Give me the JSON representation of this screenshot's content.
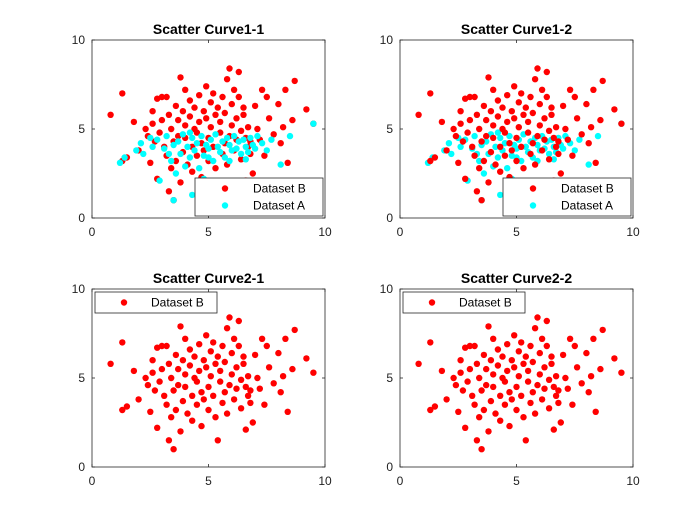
{
  "chart_data": [
    {
      "type": "scatter",
      "title": "Scatter Curve1-1",
      "xlim": [
        0,
        10
      ],
      "ylim": [
        0,
        10
      ],
      "x_ticks": [
        "0",
        "5",
        "10"
      ],
      "y_ticks": [
        "0",
        "5",
        "10"
      ],
      "legend": {
        "location": "bottom-right",
        "entries": [
          "Dataset B",
          "Dataset A"
        ]
      },
      "series": [
        {
          "name": "Dataset B",
          "color": "#ff0000",
          "points_ref": "datasetB"
        },
        {
          "name": "Dataset A",
          "color": "#00ffff",
          "points_ref": "datasetA"
        }
      ]
    },
    {
      "type": "scatter",
      "title": "Scatter Curve1-2",
      "xlim": [
        0,
        10
      ],
      "ylim": [
        0,
        10
      ],
      "x_ticks": [
        "0",
        "5",
        "10"
      ],
      "y_ticks": [
        "0",
        "5",
        "10"
      ],
      "legend": {
        "location": "bottom-right",
        "entries": [
          "Dataset B",
          "Dataset A"
        ]
      },
      "series": [
        {
          "name": "Dataset A",
          "color": "#00ffff",
          "points_ref": "datasetA"
        },
        {
          "name": "Dataset B",
          "color": "#ff0000",
          "points_ref": "datasetB"
        }
      ]
    },
    {
      "type": "scatter",
      "title": "Scatter Curve2-1",
      "xlim": [
        0,
        10
      ],
      "ylim": [
        0,
        10
      ],
      "x_ticks": [
        "0",
        "5",
        "10"
      ],
      "y_ticks": [
        "0",
        "5",
        "10"
      ],
      "legend": {
        "location": "top-left",
        "entries": [
          "Dataset B"
        ]
      },
      "series": [
        {
          "name": "Dataset B",
          "color": "#ff0000",
          "points_ref": "datasetB"
        }
      ]
    },
    {
      "type": "scatter",
      "title": "Scatter Curve2-2",
      "xlim": [
        0,
        10
      ],
      "ylim": [
        0,
        10
      ],
      "x_ticks": [
        "0",
        "5",
        "10"
      ],
      "y_ticks": [
        "0",
        "5",
        "10"
      ],
      "legend": {
        "location": "top-left",
        "entries": [
          "Dataset B"
        ]
      },
      "series": [
        {
          "name": "Dataset B",
          "color": "#ff0000",
          "points_ref": "datasetB"
        }
      ]
    }
  ],
  "datasets": {
    "datasetB": [
      [
        0.8,
        5.8
      ],
      [
        1.3,
        7.0
      ],
      [
        1.3,
        3.2
      ],
      [
        1.5,
        3.4
      ],
      [
        1.8,
        5.4
      ],
      [
        2.0,
        3.8
      ],
      [
        2.3,
        5.0
      ],
      [
        2.4,
        4.6
      ],
      [
        2.5,
        3.1
      ],
      [
        2.6,
        6.0
      ],
      [
        2.6,
        5.3
      ],
      [
        2.7,
        4.3
      ],
      [
        2.8,
        6.7
      ],
      [
        2.8,
        2.2
      ],
      [
        2.9,
        4.8
      ],
      [
        3.0,
        6.8
      ],
      [
        3.0,
        5.5
      ],
      [
        3.1,
        4.0
      ],
      [
        3.2,
        3.5
      ],
      [
        3.2,
        6.8
      ],
      [
        3.3,
        5.8
      ],
      [
        3.3,
        1.5
      ],
      [
        3.4,
        5.0
      ],
      [
        3.4,
        2.8
      ],
      [
        3.5,
        4.3
      ],
      [
        3.5,
        1.0
      ],
      [
        3.6,
        6.3
      ],
      [
        3.6,
        3.2
      ],
      [
        3.7,
        5.5
      ],
      [
        3.7,
        4.6
      ],
      [
        3.8,
        7.9
      ],
      [
        3.8,
        2.0
      ],
      [
        3.9,
        6.0
      ],
      [
        3.9,
        3.7
      ],
      [
        4.0,
        5.2
      ],
      [
        4.0,
        4.5
      ],
      [
        4.0,
        7.2
      ],
      [
        4.1,
        3.0
      ],
      [
        4.2,
        6.6
      ],
      [
        4.2,
        5.7
      ],
      [
        4.3,
        4.0
      ],
      [
        4.3,
        2.6
      ],
      [
        4.4,
        5.0
      ],
      [
        4.4,
        6.2
      ],
      [
        4.5,
        3.5
      ],
      [
        4.5,
        4.8
      ],
      [
        4.6,
        6.9
      ],
      [
        4.6,
        5.4
      ],
      [
        4.7,
        2.3
      ],
      [
        4.7,
        4.2
      ],
      [
        4.8,
        6.0
      ],
      [
        4.8,
        3.8
      ],
      [
        4.9,
        5.6
      ],
      [
        4.9,
        7.4
      ],
      [
        5.0,
        4.5
      ],
      [
        5.0,
        3.2
      ],
      [
        5.1,
        6.5
      ],
      [
        5.1,
        5.1
      ],
      [
        5.2,
        4.0
      ],
      [
        5.2,
        7.0
      ],
      [
        5.3,
        5.8
      ],
      [
        5.3,
        2.8
      ],
      [
        5.4,
        6.2
      ],
      [
        5.4,
        1.5
      ],
      [
        5.5,
        4.8
      ],
      [
        5.5,
        5.4
      ],
      [
        5.6,
        3.6
      ],
      [
        5.6,
        6.8
      ],
      [
        5.7,
        4.2
      ],
      [
        5.7,
        5.9
      ],
      [
        5.8,
        7.8
      ],
      [
        5.8,
        3.0
      ],
      [
        5.9,
        8.4
      ],
      [
        5.9,
        4.6
      ],
      [
        6.0,
        6.4
      ],
      [
        6.0,
        5.2
      ],
      [
        6.1,
        3.8
      ],
      [
        6.1,
        7.2
      ],
      [
        6.2,
        5.6
      ],
      [
        6.2,
        4.4
      ],
      [
        6.3,
        6.8
      ],
      [
        6.3,
        8.2
      ],
      [
        6.4,
        4.9
      ],
      [
        6.4,
        3.3
      ],
      [
        6.5,
        5.8
      ],
      [
        6.5,
        6.2
      ],
      [
        6.6,
        4.5
      ],
      [
        6.6,
        2.1
      ],
      [
        6.7,
        4.0
      ],
      [
        6.7,
        5.1
      ],
      [
        6.8,
        3.6
      ],
      [
        6.8,
        4.3
      ],
      [
        6.9,
        2.5
      ],
      [
        7.0,
        6.3
      ],
      [
        7.1,
        5.0
      ],
      [
        7.2,
        4.4
      ],
      [
        7.3,
        7.2
      ],
      [
        7.4,
        3.5
      ],
      [
        7.5,
        6.8
      ],
      [
        7.6,
        5.6
      ],
      [
        7.8,
        4.7
      ],
      [
        8.0,
        6.4
      ],
      [
        8.1,
        4.2
      ],
      [
        8.2,
        5.1
      ],
      [
        8.3,
        7.2
      ],
      [
        8.4,
        3.1
      ],
      [
        8.6,
        5.5
      ],
      [
        8.7,
        7.7
      ],
      [
        9.2,
        6.1
      ],
      [
        9.5,
        5.3
      ]
    ],
    "datasetA": [
      [
        1.2,
        3.1
      ],
      [
        1.4,
        3.4
      ],
      [
        1.9,
        3.8
      ],
      [
        2.1,
        4.2
      ],
      [
        2.2,
        3.6
      ],
      [
        2.6,
        4.0
      ],
      [
        2.8,
        4.4
      ],
      [
        2.9,
        2.1
      ],
      [
        3.1,
        3.9
      ],
      [
        3.2,
        4.6
      ],
      [
        3.4,
        3.2
      ],
      [
        3.5,
        4.1
      ],
      [
        3.6,
        2.5
      ],
      [
        3.7,
        4.3
      ],
      [
        3.8,
        3.6
      ],
      [
        3.9,
        4.7
      ],
      [
        4.0,
        2.9
      ],
      [
        4.1,
        4.0
      ],
      [
        4.2,
        3.4
      ],
      [
        4.3,
        4.5
      ],
      [
        4.4,
        3.8
      ],
      [
        4.5,
        4.2
      ],
      [
        4.6,
        2.8
      ],
      [
        4.7,
        4.6
      ],
      [
        4.8,
        3.5
      ],
      [
        4.9,
        4.1
      ],
      [
        5.0,
        3.9
      ],
      [
        5.1,
        4.4
      ],
      [
        5.2,
        3.2
      ],
      [
        5.3,
        4.7
      ],
      [
        5.4,
        4.0
      ],
      [
        5.5,
        3.7
      ],
      [
        5.6,
        4.3
      ],
      [
        5.7,
        3.4
      ],
      [
        5.8,
        4.5
      ],
      [
        5.9,
        4.1
      ],
      [
        6.0,
        3.8
      ],
      [
        6.1,
        4.6
      ],
      [
        6.2,
        3.9
      ],
      [
        6.3,
        4.3
      ],
      [
        6.4,
        3.6
      ],
      [
        6.5,
        4.4
      ],
      [
        6.6,
        4.0
      ],
      [
        6.7,
        3.7
      ],
      [
        6.8,
        4.5
      ],
      [
        6.9,
        4.1
      ],
      [
        7.0,
        3.9
      ],
      [
        7.1,
        4.6
      ],
      [
        7.3,
        4.2
      ],
      [
        7.5,
        3.8
      ],
      [
        7.7,
        4.4
      ],
      [
        8.1,
        3.0
      ],
      [
        8.5,
        4.6
      ],
      [
        9.5,
        5.3
      ],
      [
        4.3,
        1.3
      ],
      [
        3.5,
        1.0
      ],
      [
        4.8,
        2.2
      ],
      [
        4.6,
        1.8
      ],
      [
        5.0,
        3.4
      ],
      [
        3.3,
        3.6
      ],
      [
        2.5,
        4.5
      ],
      [
        5.9,
        3.2
      ],
      [
        6.6,
        3.3
      ],
      [
        4.2,
        4.8
      ]
    ]
  }
}
